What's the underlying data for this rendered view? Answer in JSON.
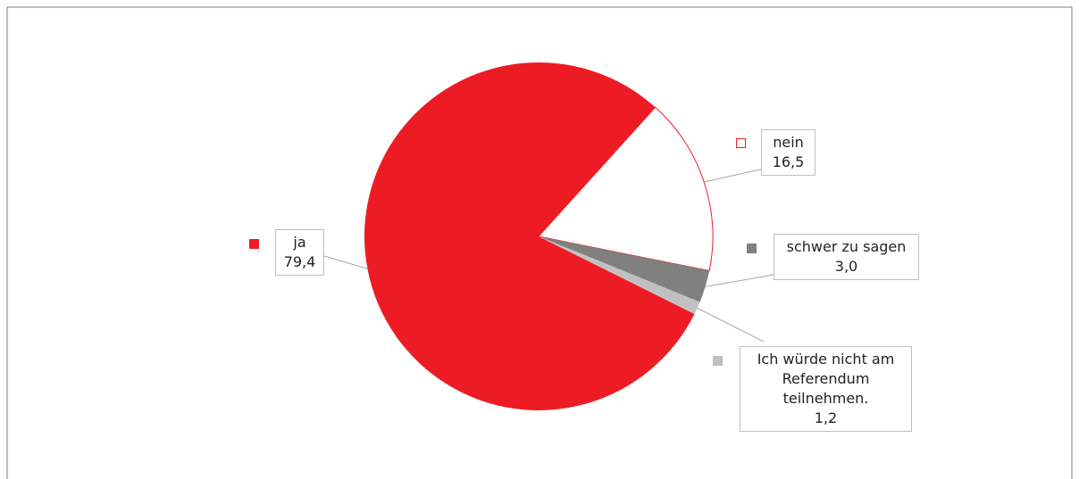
{
  "chart_data": {
    "type": "pie",
    "categories": [
      "ja",
      "nein",
      "schwer zu sagen",
      "Ich würde nicht am Referendum teilnehmen."
    ],
    "values": [
      79.4,
      16.5,
      3.0,
      1.2
    ],
    "value_labels": [
      "79,4",
      "16,5",
      "3,0",
      "1,2"
    ],
    "colors": [
      "#ed1c24",
      "#ffffff",
      "#808080",
      "#c0c0c0"
    ],
    "edge_color": "#ed1c24"
  }
}
